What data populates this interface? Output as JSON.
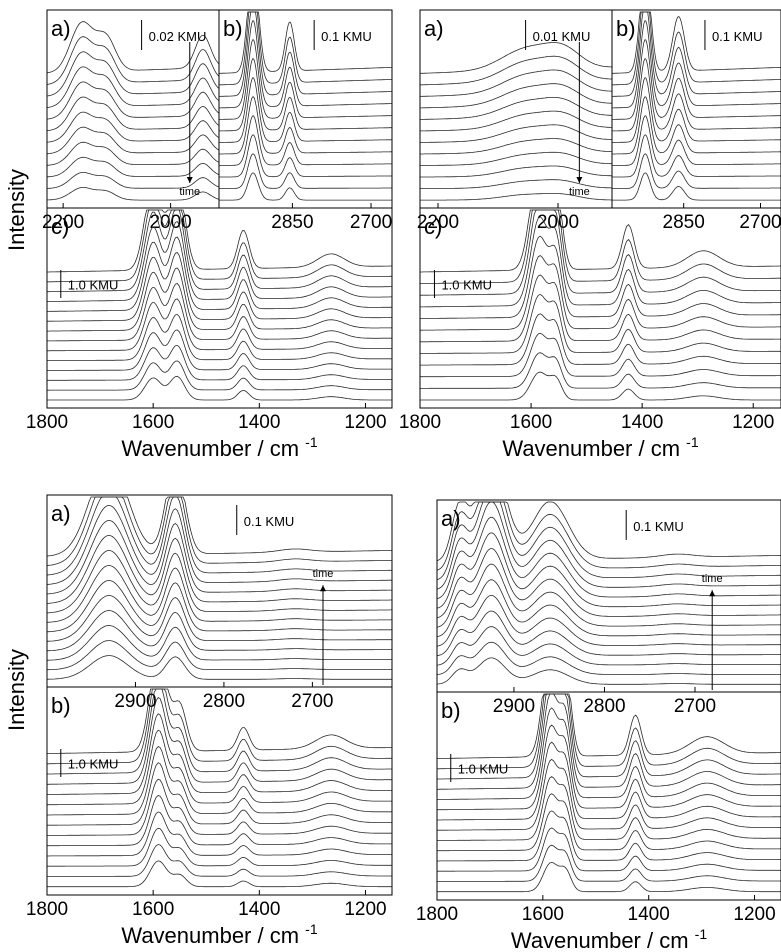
{
  "chart_data": {
    "type": "line",
    "y_label": "Intensity",
    "x_label": "Wavenumber / cm",
    "x_label_sup": "-1",
    "time_label": "time",
    "figures": [
      {
        "id": "top-left",
        "panels": [
          {
            "letter": "a)",
            "xlim": [
              2230,
              1910
            ],
            "ticks": [
              2200,
              2000
            ],
            "scale_bar": "0.02 KMU",
            "n_traces": 12,
            "arrow": "down",
            "peaks": [
              {
                "center": 2165,
                "width": 30,
                "height": 0.45
              },
              {
                "center": 2120,
                "width": 25,
                "height": 0.3
              },
              {
                "center": 1940,
                "width": 20,
                "height": 0.3
              }
            ]
          },
          {
            "letter": "b)",
            "xlim": [
              2990,
              2660
            ],
            "ticks": [
              2850,
              2700
            ],
            "scale_bar": "0.1 KMU",
            "n_traces": 12,
            "peaks": [
              {
                "center": 2925,
                "width": 14,
                "height": 1.0
              },
              {
                "center": 2855,
                "width": 12,
                "height": 0.45
              }
            ]
          },
          {
            "letter": "c)",
            "xlim": [
              1800,
              1150
            ],
            "ticks": [
              1800,
              1600,
              1400,
              1200
            ],
            "scale_bar": "1.0 KMU",
            "n_traces": 14,
            "xlabel": true,
            "peaks": [
              {
                "center": 1600,
                "width": 22,
                "height": 0.8
              },
              {
                "center": 1555,
                "width": 20,
                "height": 0.85
              },
              {
                "center": 1430,
                "width": 15,
                "height": 0.35
              },
              {
                "center": 1265,
                "width": 35,
                "height": 0.12
              }
            ]
          }
        ]
      },
      {
        "id": "top-right",
        "panels": [
          {
            "letter": "a)",
            "xlim": [
              2230,
              1910
            ],
            "ticks": [
              2200,
              2000
            ],
            "scale_bar": "0.01 KMU",
            "n_traces": 12,
            "arrow": "down",
            "peaks": [
              {
                "center": 2050,
                "width": 60,
                "height": 0.2
              },
              {
                "center": 1990,
                "width": 40,
                "height": 0.15
              }
            ]
          },
          {
            "letter": "b)",
            "xlim": [
              2990,
              2660
            ],
            "ticks": [
              2850,
              2700
            ],
            "scale_bar": "0.1 KMU",
            "n_traces": 12,
            "peaks": [
              {
                "center": 2925,
                "width": 14,
                "height": 1.0
              },
              {
                "center": 2860,
                "width": 16,
                "height": 0.5
              }
            ]
          },
          {
            "letter": "c)",
            "xlim": [
              1800,
              1150
            ],
            "ticks": [
              1800,
              1600,
              1400,
              1200
            ],
            "scale_bar": "1.0 KMU",
            "n_traces": 12,
            "xlabel": true,
            "peaks": [
              {
                "center": 1585,
                "width": 22,
                "height": 1.0
              },
              {
                "center": 1555,
                "width": 15,
                "height": 0.7
              },
              {
                "center": 1425,
                "width": 15,
                "height": 0.4
              },
              {
                "center": 1290,
                "width": 40,
                "height": 0.15
              }
            ]
          }
        ]
      },
      {
        "id": "bottom-left",
        "panels": [
          {
            "letter": "a)",
            "xlim": [
              3000,
              2610
            ],
            "ticks": [
              2900,
              2800,
              2700
            ],
            "scale_bar": "0.1 KMU",
            "n_traces": 14,
            "arrow": "up",
            "peaks": [
              {
                "center": 2930,
                "width": 30,
                "height": 0.9
              },
              {
                "center": 2855,
                "width": 15,
                "height": 0.85
              },
              {
                "center": 2720,
                "width": 25,
                "height": 0.03
              }
            ]
          },
          {
            "letter": "b)",
            "xlim": [
              1800,
              1150
            ],
            "ticks": [
              1800,
              1600,
              1400,
              1200
            ],
            "scale_bar": "1.0 KMU",
            "n_traces": 14,
            "xlabel": true,
            "peaks": [
              {
                "center": 1590,
                "width": 22,
                "height": 0.9
              },
              {
                "center": 1550,
                "width": 18,
                "height": 0.4
              },
              {
                "center": 1430,
                "width": 15,
                "height": 0.2
              },
              {
                "center": 1265,
                "width": 40,
                "height": 0.12
              }
            ]
          }
        ]
      },
      {
        "id": "bottom-right",
        "panels": [
          {
            "letter": "a)",
            "xlim": [
              2985,
              2605
            ],
            "ticks": [
              2900,
              2800,
              2700
            ],
            "scale_bar": "0.1 KMU",
            "n_traces": 14,
            "arrow": "up",
            "peaks": [
              {
                "center": 2960,
                "width": 12,
                "height": 0.5
              },
              {
                "center": 2925,
                "width": 22,
                "height": 1.0
              },
              {
                "center": 2860,
                "width": 28,
                "height": 0.55
              },
              {
                "center": 2720,
                "width": 25,
                "height": 0.03
              }
            ]
          },
          {
            "letter": "b)",
            "xlim": [
              1800,
              1150
            ],
            "ticks": [
              1800,
              1600,
              1400,
              1200
            ],
            "scale_bar": "1.0 KMU",
            "n_traces": 14,
            "xlabel": true,
            "peaks": [
              {
                "center": 1585,
                "width": 20,
                "height": 1.0
              },
              {
                "center": 1557,
                "width": 15,
                "height": 0.7
              },
              {
                "center": 1425,
                "width": 15,
                "height": 0.35
              },
              {
                "center": 1290,
                "width": 45,
                "height": 0.15
              }
            ]
          }
        ]
      }
    ]
  }
}
